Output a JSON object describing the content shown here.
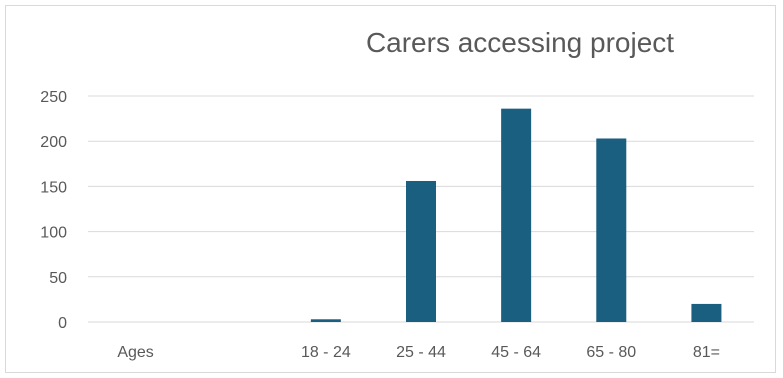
{
  "chart_data": {
    "type": "bar",
    "title": "Carers accessing project",
    "xlabel": "",
    "ylabel": "",
    "categories": [
      "Ages",
      "",
      "18 - 24",
      "25 - 44",
      "45 - 64",
      "65 - 80",
      "81="
    ],
    "values": [
      0,
      0,
      3,
      156,
      236,
      203,
      20
    ],
    "ylim": [
      0,
      250
    ],
    "yticks": [
      0,
      50,
      100,
      150,
      200,
      250
    ],
    "grid": true,
    "legend": "none",
    "colors": {
      "bar": "#1a5e80",
      "grid": "#d9d9d9",
      "text": "#595959"
    }
  }
}
